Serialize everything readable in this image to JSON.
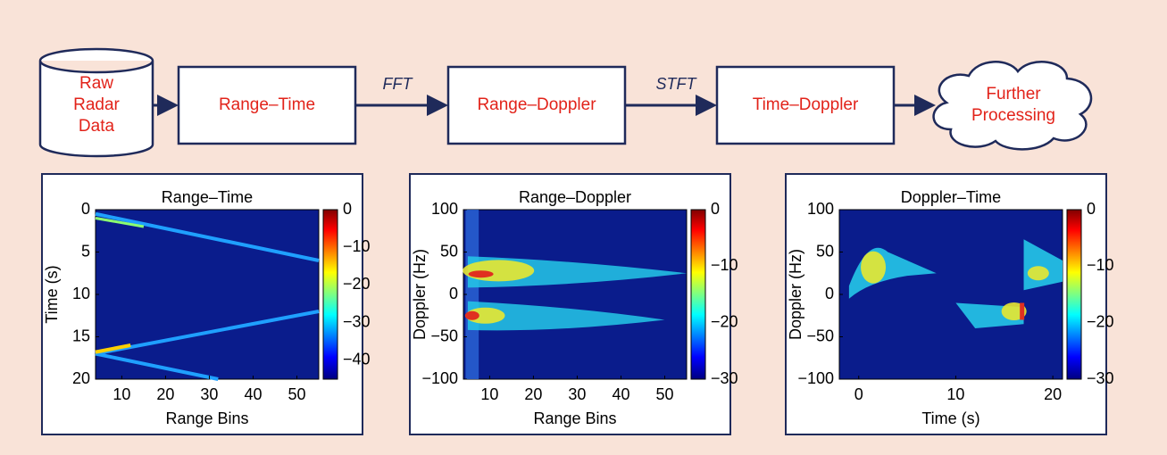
{
  "flow": {
    "nodes": [
      {
        "label_lines": [
          "Raw",
          "Radar",
          "Data"
        ]
      },
      {
        "label_lines": [
          "Range–Time"
        ]
      },
      {
        "label_lines": [
          "Range–Doppler"
        ]
      },
      {
        "label_lines": [
          "Time–Doppler"
        ]
      },
      {
        "label_lines": [
          "Further",
          "Processing"
        ]
      }
    ],
    "edges": [
      {
        "label": "FFT"
      },
      {
        "label": "STFT"
      }
    ]
  },
  "panels": [
    {
      "title": "Range–Time",
      "x_label": "Range Bins",
      "y_label": "Time (s)",
      "x_ticks": [
        "10",
        "20",
        "30",
        "40",
        "50"
      ],
      "y_ticks": [
        "0",
        "5",
        "10",
        "15",
        "20"
      ],
      "colorbar_ticks": [
        "0",
        "−10",
        "−20",
        "−30",
        "−40"
      ]
    },
    {
      "title": "Range–Doppler",
      "x_label": "Range Bins",
      "y_label": "Doppler (Hz)",
      "x_ticks": [
        "10",
        "20",
        "30",
        "40",
        "50"
      ],
      "y_ticks": [
        "100",
        "50",
        "0",
        "−50",
        "−100"
      ],
      "colorbar_ticks": [
        "0",
        "−10",
        "−20",
        "−30"
      ]
    },
    {
      "title": "Doppler–Time",
      "x_label": "Time (s)",
      "y_label": "Doppler (Hz)",
      "x_ticks": [
        "0",
        "10",
        "20"
      ],
      "y_ticks": [
        "100",
        "50",
        "0",
        "−50",
        "−100"
      ],
      "colorbar_ticks": [
        "0",
        "−10",
        "−20",
        "−30"
      ]
    }
  ]
}
